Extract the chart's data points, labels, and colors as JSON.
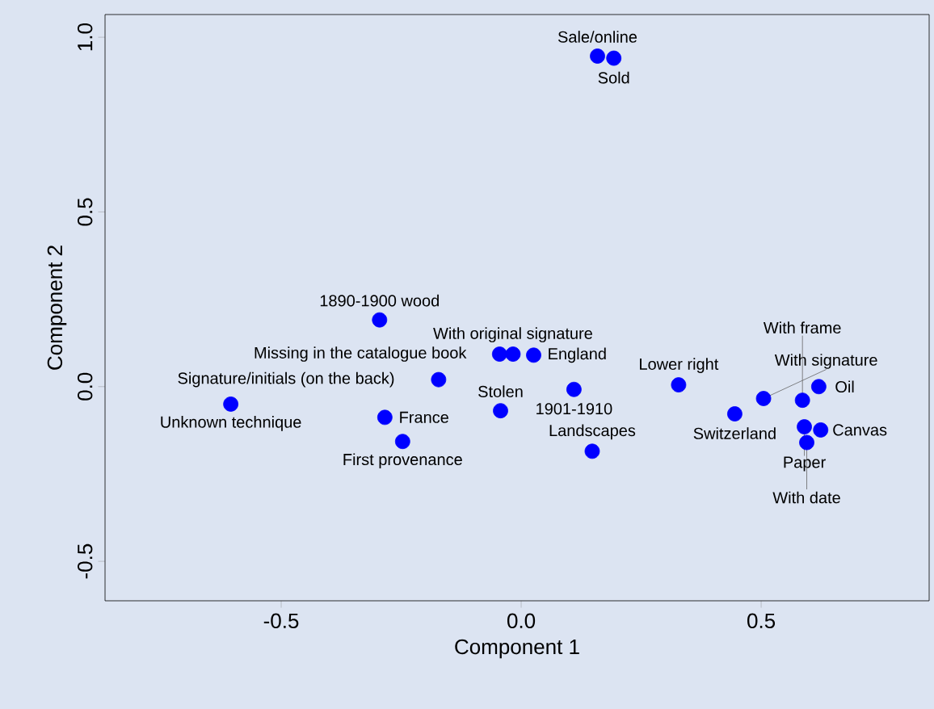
{
  "chart_data": {
    "type": "scatter",
    "xlabel": "Component 1",
    "ylabel": "Component 2",
    "color": "#0000ff",
    "x": [
      0.159,
      0.193,
      -0.295,
      -0.045,
      -0.017,
      0.026,
      -0.172,
      -0.605,
      -0.284,
      -0.247,
      -0.043,
      0.148,
      0.11,
      0.328,
      0.445,
      0.505,
      0.586,
      0.62,
      0.59,
      0.624,
      0.595
    ],
    "values": [
      0.946,
      0.94,
      0.191,
      0.093,
      0.093,
      0.09,
      0.02,
      -0.05,
      -0.088,
      -0.157,
      -0.069,
      -0.185,
      -0.008,
      0.005,
      -0.078,
      -0.034,
      -0.039,
      0.0,
      -0.115,
      -0.124,
      -0.16
    ],
    "xlim": [
      -0.867,
      0.85
    ],
    "ylim": [
      -0.613,
      1.065
    ],
    "xticks": [
      -0.5,
      {
        "value": 0,
        "label": "0.0"
      },
      0.5
    ],
    "yticks": [
      -0.5,
      {
        "value": 0,
        "label": "0.0"
      },
      0.5,
      {
        "value": 1,
        "label": "1.0"
      }
    ],
    "annotations": [
      {
        "text": "Sale/online",
        "x": 0.159,
        "y": 0.946
      },
      {
        "text": "Sold",
        "x": 0.193,
        "y": 0.94
      },
      {
        "text": "1890-1900 wood",
        "x": -0.295,
        "y": 0.191
      },
      {
        "text": "Missing in the catalogue book",
        "x": -0.045,
        "y": 0.093
      },
      {
        "text": "With original signature",
        "x": -0.017,
        "y": 0.093
      },
      {
        "text": "England",
        "x": 0.026,
        "y": 0.09
      },
      {
        "text": "Signature/initials (on the back)",
        "x": -0.172,
        "y": 0.02
      },
      {
        "text": "Unknown technique",
        "x": -0.605,
        "y": -0.05
      },
      {
        "text": "France",
        "x": -0.284,
        "y": -0.088
      },
      {
        "text": "First provenance",
        "x": -0.247,
        "y": -0.157
      },
      {
        "text": "Stolen",
        "x": -0.043,
        "y": -0.069
      },
      {
        "text": "Landscapes",
        "x": 0.148,
        "y": -0.185
      },
      {
        "text": "1901-1910",
        "x": 0.11,
        "y": -0.008
      },
      {
        "text": "Lower right",
        "x": 0.328,
        "y": 0.005
      },
      {
        "text": "Switzerland",
        "x": 0.445,
        "y": -0.078
      },
      {
        "text": "With signature",
        "x": 0.505,
        "y": -0.034
      },
      {
        "text": "With frame",
        "x": 0.586,
        "y": -0.039
      },
      {
        "text": "Oil",
        "x": 0.62,
        "y": 0.0
      },
      {
        "text": "Paper",
        "x": 0.59,
        "y": -0.115
      },
      {
        "text": "Canvas",
        "x": 0.624,
        "y": -0.124
      },
      {
        "text": "With date",
        "x": 0.595,
        "y": -0.16
      }
    ]
  }
}
